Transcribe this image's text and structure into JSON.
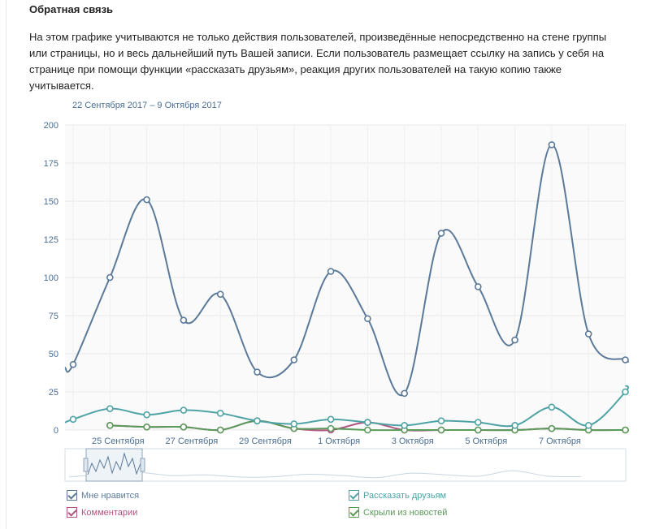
{
  "section": {
    "title": "Обратная связь",
    "description": "На этом графике учитываются не только действия пользователей, произведённые непосредственно на стене группы или страницы, но и весь дальнейший путь Вашей записи. Если пользователь размещает ссылку на запись у себя на странице при помощи функции «рассказать друзьям», реакция других пользователей на такую копию также учитывается."
  },
  "chart_data": {
    "type": "line",
    "date_range": "22 Сентября 2017 – 9 Октября 2017",
    "x_tick_labels": [
      "25 Сентября",
      "27 Сентября",
      "29 Сентября",
      "1 Октября",
      "3 Октября",
      "5 Октября",
      "7 Октября"
    ],
    "y_ticks": [
      0,
      25,
      50,
      75,
      100,
      125,
      150,
      175,
      200
    ],
    "ylim": [
      0,
      200
    ],
    "grid": true,
    "series": [
      {
        "name": "Мне нравится",
        "color": "#5b7a99",
        "values": [
          43,
          100,
          151,
          72,
          89,
          38,
          46,
          104,
          73,
          24,
          129,
          94,
          59,
          187,
          63,
          46
        ]
      },
      {
        "name": "Рассказать друзьям",
        "color": "#4fa3a5",
        "values": [
          7,
          14,
          10,
          13,
          11,
          6,
          4,
          7,
          5,
          3,
          6,
          5,
          3,
          15,
          3,
          25
        ]
      },
      {
        "name": "Комментарии",
        "color": "#b05580",
        "values": [
          null,
          3,
          2,
          2,
          0,
          6,
          1,
          0,
          5,
          0,
          0,
          0,
          0,
          1,
          0,
          0
        ]
      },
      {
        "name": "Скрыли из новостей",
        "color": "#5a9a5a",
        "values": [
          null,
          3,
          2,
          2,
          0,
          6,
          1,
          1,
          0,
          0,
          0,
          0,
          0,
          1,
          0,
          0
        ]
      }
    ]
  },
  "legend": {
    "likes": {
      "label": "Мне нравится",
      "color": "#5b7a99"
    },
    "share": {
      "label": "Рассказать друзьям",
      "color": "#4fa3a5"
    },
    "comments": {
      "label": "Комментарии",
      "color": "#b05580"
    },
    "hidden": {
      "label": "Скрыли из новостей",
      "color": "#5a9a5a"
    }
  }
}
